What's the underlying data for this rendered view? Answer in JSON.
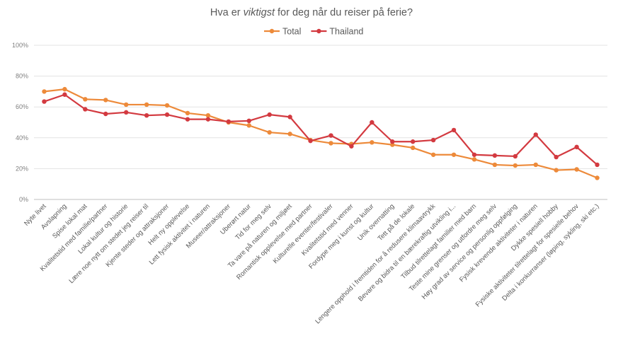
{
  "chart_data": {
    "type": "line",
    "title_prefix": "Hva er ",
    "title_emphasis": "viktigst",
    "title_suffix": " for deg når du reiser på ferie?",
    "xlabel": "",
    "ylabel": "",
    "ylim": [
      0,
      100
    ],
    "yticks": [
      "0%",
      "20%",
      "40%",
      "60%",
      "80%",
      "100%"
    ],
    "grid": true,
    "legend_position": "top-center",
    "categories": [
      "Nyte livet",
      "Avslapning",
      "Spise lokal mat",
      "Kvalitetstid med familie/partner",
      "Lokal kultur og historie",
      "Lære noe nytt om stedet jeg reiser til",
      "Kjente steder og attraksjoner",
      "Helt ny opplevelse",
      "Lett fysisk aktivitet i naturen",
      "Museer/attraksjoner",
      "Uberørt natur",
      "Tid for meg selv",
      "Ta vare på naturen og miljøet",
      "Romantisk opplevelse med partner",
      "Kulturelle eventer/festivaler",
      "Kvalitetstid med venner",
      "Fordype meg i kunst og kultur",
      "Unik overnatting",
      "Tett på de lokale",
      "Lengere opphold i fremtiden for å redusere klimaavtrykk",
      "Bevare og bidra til en bærekraftig utvikling i...",
      "Tilbud tilrettelagt familier med barn",
      "Teste mine grenser og utfordre meg selv",
      "Høy grad av service og personlig oppfølging",
      "Fysisk krevende aktiviteter i naturen",
      "Dykke spesiell hobby",
      "Fysiske aktiviteter tilrettelagt for spesielle behov",
      "Delta i konkurranser (løping, sykling, ski etc.)"
    ],
    "series": [
      {
        "name": "Total",
        "color": "#ED8A3A",
        "values": [
          70,
          71.5,
          65,
          64.5,
          61.5,
          61.5,
          61,
          56,
          54.5,
          50,
          48,
          43.5,
          42.5,
          38.5,
          36.5,
          36,
          37,
          35.5,
          33.5,
          29,
          29,
          26,
          22.5,
          22,
          22.5,
          19,
          19.5,
          14
        ]
      },
      {
        "name": "Thailand",
        "color": "#D33A40",
        "values": [
          63.5,
          68,
          58.5,
          55.5,
          56.5,
          54.5,
          55,
          52,
          52,
          50.5,
          51,
          55,
          53.5,
          38,
          41.5,
          34.5,
          50,
          37.5,
          37.5,
          38.5,
          45,
          29,
          28.5,
          28,
          42,
          27.5,
          34,
          22.5
        ]
      }
    ]
  }
}
